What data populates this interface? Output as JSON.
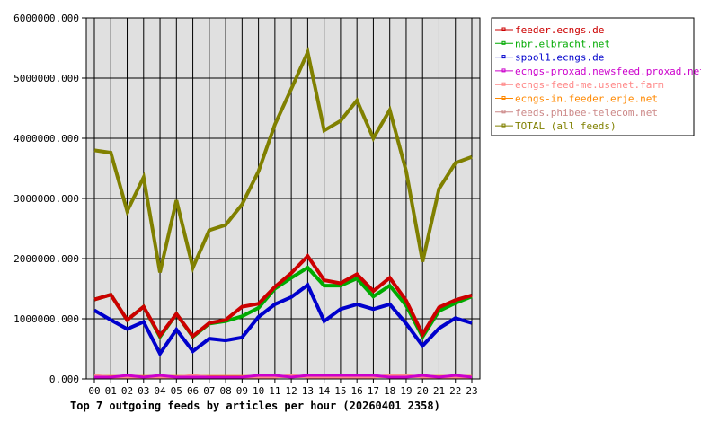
{
  "chart_data": {
    "type": "line",
    "title": "Top 7 outgoing feeds by articles per hour (20260401 2358)",
    "xlabel": "",
    "ylabel": "",
    "ylim": [
      0,
      6000000
    ],
    "grid": true,
    "legend_position": "right",
    "categories": [
      "00",
      "01",
      "02",
      "03",
      "04",
      "05",
      "06",
      "07",
      "08",
      "09",
      "10",
      "11",
      "12",
      "13",
      "14",
      "15",
      "16",
      "17",
      "18",
      "19",
      "20",
      "21",
      "22",
      "23"
    ],
    "y_ticks": [
      "0.000",
      "1000000.000",
      "2000000.000",
      "3000000.000",
      "4000000.000",
      "5000000.000",
      "6000000.000"
    ],
    "series": [
      {
        "name": "feeder.ecngs.de",
        "color": "#cc0000",
        "values": [
          1320000,
          1400000,
          980000,
          1200000,
          720000,
          1080000,
          710000,
          930000,
          980000,
          1200000,
          1250000,
          1530000,
          1760000,
          2040000,
          1640000,
          1590000,
          1740000,
          1460000,
          1680000,
          1300000,
          740000,
          1190000,
          1310000,
          1390000
        ]
      },
      {
        "name": "nbr.elbracht.net",
        "color": "#00aa00",
        "values": [
          1320000,
          1400000,
          980000,
          1200000,
          700000,
          1080000,
          700000,
          920000,
          960000,
          1040000,
          1180000,
          1500000,
          1680000,
          1850000,
          1550000,
          1550000,
          1670000,
          1370000,
          1550000,
          1220000,
          700000,
          1130000,
          1260000,
          1370000
        ]
      },
      {
        "name": "spool1.ecngs.de",
        "color": "#0000cc",
        "values": [
          1140000,
          980000,
          830000,
          950000,
          420000,
          820000,
          460000,
          670000,
          640000,
          690000,
          1030000,
          1240000,
          1360000,
          1560000,
          960000,
          1160000,
          1240000,
          1160000,
          1240000,
          920000,
          550000,
          840000,
          1010000,
          930000
        ]
      },
      {
        "name": "ecngs-proxad.newsfeed.proxad.net",
        "color": "#cc00cc",
        "values": [
          0,
          0,
          30000,
          0,
          30000,
          0,
          0,
          0,
          0,
          0,
          30000,
          30000,
          0,
          30000,
          30000,
          30000,
          30000,
          30000,
          0,
          0,
          30000,
          0,
          30000,
          0
        ]
      },
      {
        "name": "ecngs-feed-me.usenet.farm",
        "color": "#ff8888",
        "values": [
          30000,
          0,
          0,
          0,
          0,
          0,
          30000,
          0,
          0,
          0,
          0,
          0,
          30000,
          0,
          0,
          0,
          0,
          0,
          30000,
          30000,
          0,
          0,
          0,
          0
        ]
      },
      {
        "name": "ecngs-in.feeder.erje.net",
        "color": "#ff8800",
        "values": [
          10000,
          10000,
          10000,
          10000,
          10000,
          10000,
          10000,
          10000,
          10000,
          10000,
          10000,
          10000,
          10000,
          10000,
          10000,
          10000,
          10000,
          10000,
          10000,
          10000,
          10000,
          10000,
          10000,
          10000
        ]
      },
      {
        "name": "feeds.phibee-telecom.net",
        "color": "#cc8888",
        "values": [
          10000,
          10000,
          10000,
          10000,
          10000,
          10000,
          10000,
          10000,
          10000,
          10000,
          10000,
          10000,
          10000,
          10000,
          10000,
          10000,
          10000,
          10000,
          10000,
          10000,
          10000,
          10000,
          10000,
          10000
        ]
      },
      {
        "name": "TOTAL (all feeds)",
        "color": "#808000",
        "values": [
          3800000,
          3760000,
          2790000,
          3350000,
          1770000,
          2970000,
          1850000,
          2470000,
          2560000,
          2900000,
          3450000,
          4230000,
          4820000,
          5430000,
          4130000,
          4290000,
          4630000,
          4000000,
          4470000,
          3450000,
          1950000,
          3160000,
          3590000,
          3690000
        ]
      }
    ]
  }
}
